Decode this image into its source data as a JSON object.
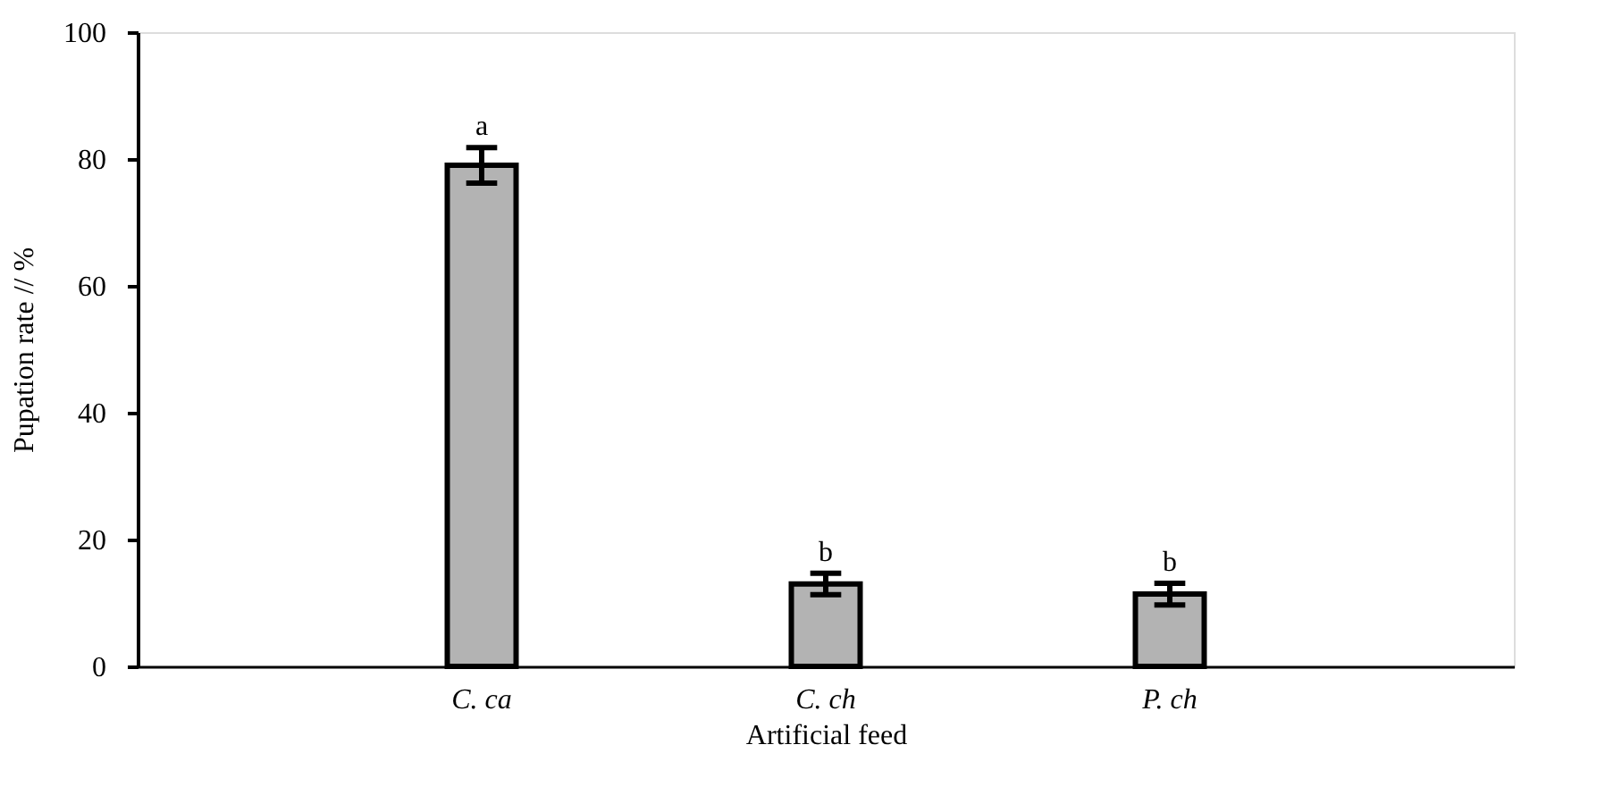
{
  "chart_data": {
    "type": "bar",
    "xlabel": "Artificial feed",
    "ylabel": "Pupation rate // %",
    "categories": [
      "C. ca",
      "C. ch",
      "P. ch"
    ],
    "values": [
      79.0,
      13.0,
      11.4
    ],
    "errors": [
      2.8,
      1.7,
      1.7
    ],
    "color": "#b3b3b3",
    "ylim": [
      0,
      100
    ],
    "yticks": [
      0,
      20,
      40,
      60,
      80,
      100
    ],
    "grid": false,
    "annotations": [
      {
        "text": "a",
        "x": "C. ca",
        "y": 81.8
      },
      {
        "text": "b",
        "x": "C. ch",
        "y": 14.7
      },
      {
        "text": "b",
        "x": "P. ch",
        "y": 13.1
      }
    ]
  }
}
